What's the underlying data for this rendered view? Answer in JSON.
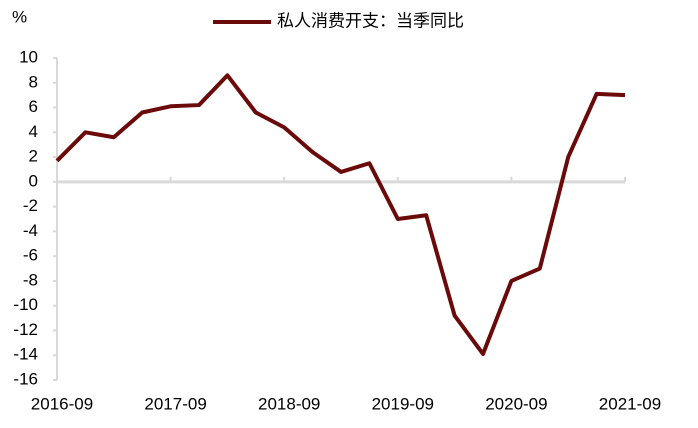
{
  "chart_data": {
    "type": "line",
    "y_label": "%",
    "categories": [
      "2016-09",
      null,
      null,
      null,
      "2017-09",
      null,
      null,
      null,
      "2018-09",
      null,
      null,
      null,
      "2019-09",
      null,
      null,
      null,
      "2020-09",
      null,
      null,
      null,
      "2021-09"
    ],
    "series": [
      {
        "name": "私人消费开支：当季同比",
        "color": "#6b0a0a",
        "values": [
          1.7,
          4.0,
          3.6,
          5.6,
          6.1,
          6.2,
          8.6,
          5.6,
          4.4,
          2.4,
          0.8,
          1.5,
          -3.0,
          -2.7,
          -10.8,
          -13.9,
          -8.0,
          -7.0,
          2.0,
          7.1,
          7.0
        ]
      }
    ],
    "ylim": [
      -16,
      10
    ],
    "yticks": [
      -16,
      -14,
      -12,
      -10,
      -8,
      -6,
      -4,
      -2,
      0,
      2,
      4,
      6,
      8,
      10
    ],
    "grid": false,
    "legend": "top"
  }
}
